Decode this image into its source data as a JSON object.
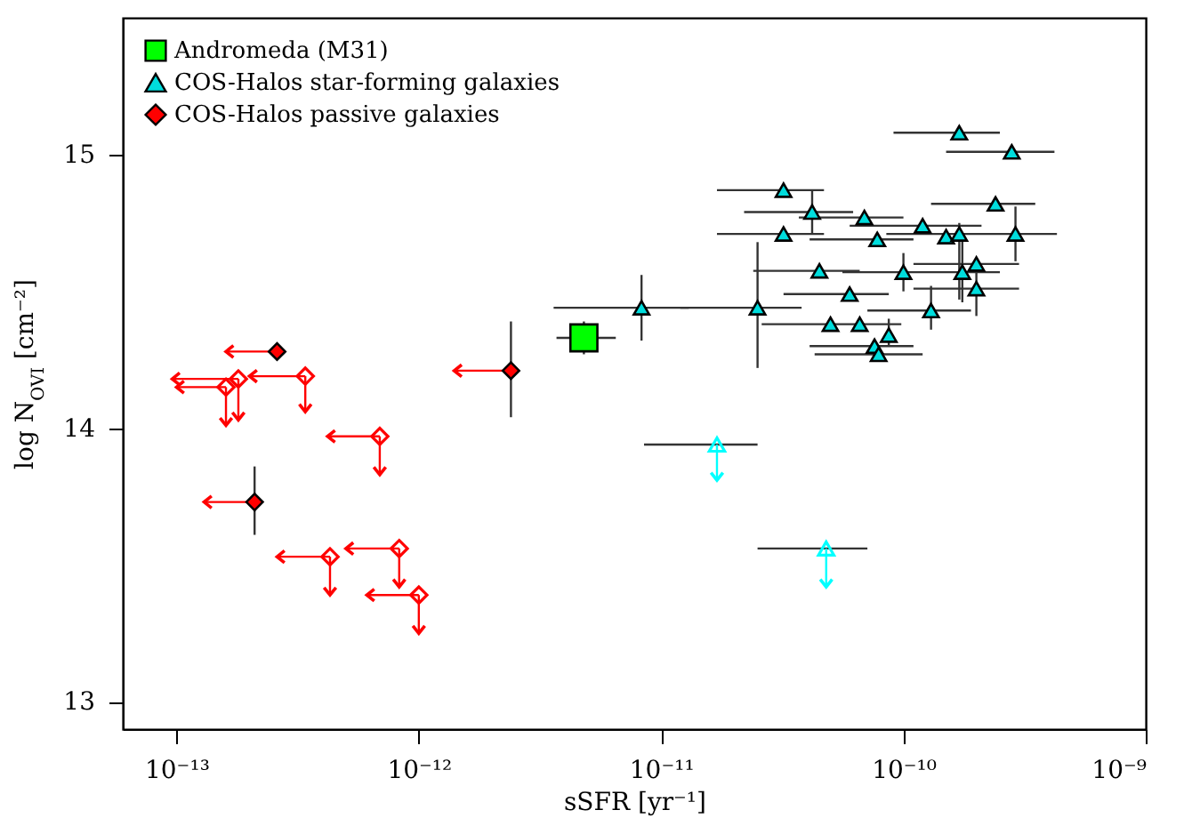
{
  "chart_data": {
    "type": "scatter",
    "xlabel": "sSFR [yr⁻¹]",
    "ylabel": "log N$_{OVI}$ [cm⁻²]",
    "log": "x",
    "xlim": [
      6e-14,
      1e-09
    ],
    "ylim": [
      12.9,
      15.5
    ],
    "xticks": [
      {
        "value": 1e-13,
        "label": "10⁻¹³"
      },
      {
        "value": 1e-12,
        "label": "10⁻¹²"
      },
      {
        "value": 1e-11,
        "label": "10⁻¹¹"
      },
      {
        "value": 1e-10,
        "label": "10⁻¹⁰"
      },
      {
        "value": 1e-09,
        "label": "10⁻⁹"
      }
    ],
    "yticks": [
      13,
      14,
      15
    ],
    "legend": "top left",
    "series": [
      {
        "name": "Andromeda (M31)",
        "color": "#00ff00",
        "marker": "square",
        "x": [
          4.8e-12
        ],
        "values": [
          14.33
        ],
        "errors": [
          0.06
        ],
        "xerrors": [
          [
            3.7e-12,
            6.5e-12
          ]
        ]
      },
      {
        "name": "COS-Halos star-forming galaxies",
        "color": "#00dddd",
        "marker": "triangle",
        "x": [
          1.7e-10,
          2.8e-10,
          3.2e-11,
          4.2e-11,
          6.9e-11,
          2.4e-10,
          1.2e-10,
          3.2e-11,
          7.8e-11,
          1.5e-10,
          1.7e-10,
          2.9e-10,
          4.5e-11,
          1e-10,
          1.75e-10,
          2e-10,
          2e-10,
          6e-11,
          1.3e-10,
          2.5e-11,
          8.3e-12,
          5e-11,
          6.6e-11,
          8.7e-11,
          7.6e-11,
          7.9e-11
        ],
        "values": [
          15.08,
          15.01,
          14.87,
          14.79,
          14.77,
          14.82,
          14.74,
          14.71,
          14.69,
          14.7,
          14.71,
          14.71,
          14.575,
          14.57,
          14.57,
          14.6,
          14.51,
          14.49,
          14.43,
          14.44,
          14.44,
          14.38,
          14.38,
          14.34,
          14.3,
          14.27
        ],
        "errors": [
          null,
          null,
          null,
          [
            14.71,
            14.87
          ],
          null,
          null,
          null,
          null,
          null,
          null,
          [
            14.47,
            14.75
          ],
          [
            14.61,
            14.81
          ],
          null,
          [
            14.5,
            14.64
          ],
          [
            14.46,
            14.69
          ],
          null,
          [
            14.41,
            14.57
          ],
          null,
          [
            14.36,
            14.52
          ],
          [
            14.22,
            14.68
          ],
          [
            14.32,
            14.56
          ],
          null,
          null,
          [
            14.3,
            14.4
          ],
          null,
          null
        ],
        "xerrors": [
          [
            9.1e-11,
            2.5e-10
          ],
          [
            1.5e-10,
            4.2e-10
          ],
          [
            1.7e-11,
            4.7e-11
          ],
          [
            2.2e-11,
            6.2e-11
          ],
          [
            3.7e-11,
            1e-10
          ],
          [
            1.3e-10,
            3.5e-10
          ],
          [
            6e-11,
            2.1e-10
          ],
          [
            1.7e-11,
            4.7e-11
          ],
          [
            4.1e-11,
            1.1e-10
          ],
          null,
          null,
          [
            8.5e-11,
            4.3e-10
          ],
          [
            2.4e-11,
            6.6e-11
          ],
          [
            5.6e-11,
            2.5e-10
          ],
          null,
          [
            1.1e-10,
            3e-10
          ],
          [
            1.1e-10,
            3e-10
          ],
          [
            3.2e-11,
            8.7e-11
          ],
          [
            7.1e-11,
            1.9e-10
          ],
          [
            1.2e-11,
            3.8e-11
          ],
          [
            3.6e-12,
            1.3e-11
          ],
          [
            2.6e-11,
            9.8e-11
          ],
          null,
          null,
          [
            4.1e-11,
            1.1e-10
          ],
          [
            4.3e-11,
            1.2e-10
          ]
        ]
      },
      {
        "name": "COS-Halos passive galaxies",
        "color": "#ff0000",
        "marker": "diamond",
        "x": [
          2.6e-13,
          2.4e-12,
          2.1e-13
        ],
        "values": [
          14.28,
          14.21,
          13.73
        ],
        "errors": [
          null,
          [
            14.04,
            14.39
          ],
          [
            13.61,
            13.86
          ]
        ],
        "xerrors": [
          [
            1.6e-13,
            2.6e-13
          ],
          [
            1.4e-12,
            2.4e-12
          ],
          [
            1.3e-13,
            2.1e-13
          ]
        ]
      },
      {
        "color": "#00ffff",
        "marker": "triangle",
        "x": [
          1.7e-11,
          4.8e-11
        ],
        "values": [
          13.94,
          13.56
        ],
        "errors": [
          [
            13.81,
            13.94
          ],
          [
            13.42,
            13.56
          ]
        ],
        "xerrors": [
          [
            8.5e-12,
            2.5e-11
          ],
          [
            2.5e-11,
            7.1e-11
          ]
        ]
      },
      {
        "color": "#ff0000",
        "marker": "diamond",
        "x": [
          3.4e-13,
          1.8e-13,
          1.6e-13,
          6.9e-13,
          4.3e-13,
          8.3e-13,
          1e-12
        ],
        "values": [
          14.19,
          14.18,
          14.15,
          13.97,
          13.53,
          13.56,
          13.39
        ],
        "errors": [
          [
            14.06,
            14.19
          ],
          [
            14.03,
            14.18
          ],
          [
            14.01,
            14.15
          ],
          [
            13.83,
            13.97
          ],
          [
            13.39,
            13.53
          ],
          [
            13.42,
            13.56
          ],
          [
            13.25,
            13.39
          ]
        ],
        "xerrors": [
          [
            2e-13,
            3.4e-13
          ],
          [
            9.6e-14,
            1.8e-13
          ],
          [
            1e-13,
            1.6e-13
          ],
          [
            4.2e-13,
            6.9e-13
          ],
          [
            2.6e-13,
            4.3e-13
          ],
          [
            5e-13,
            8.3e-13
          ],
          [
            6.1e-13,
            1e-12
          ]
        ]
      }
    ]
  }
}
